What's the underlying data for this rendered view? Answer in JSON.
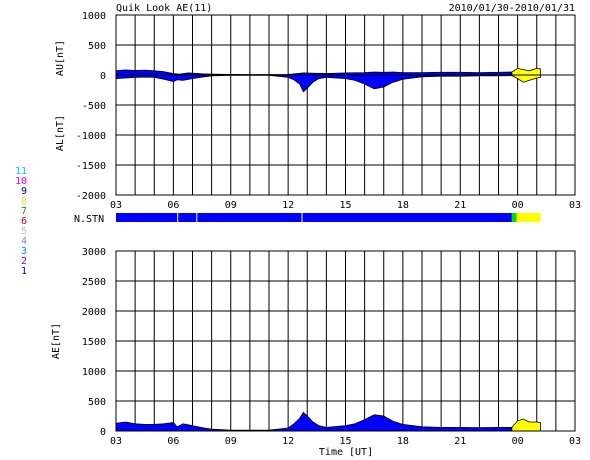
{
  "header": {
    "title": "Quik Look AE(11)",
    "date_range": "2010/01/30-2010/01/31"
  },
  "colors": {
    "frame": "#000000",
    "grid": "#000000",
    "main_fill": "#0000ff",
    "recent_fill": "#ffff00",
    "station_blue": "#0000ff",
    "station_green": "#00dd00",
    "station_yellow": "#ffff00"
  },
  "station_strip": {
    "label": "N.STN",
    "segments": [
      {
        "from": 3.0,
        "to": 23.7,
        "stations": 1,
        "color": "#0000ff"
      },
      {
        "from": 23.7,
        "to": 23.95,
        "stations": 7,
        "color": "#00dd00"
      },
      {
        "from": 23.95,
        "to": 25.2,
        "stations": 8,
        "color": "#ffff00"
      }
    ],
    "gaps_hours": [
      6.2,
      7.2,
      12.7
    ]
  },
  "station_legend": [
    {
      "label": "11",
      "color": "#00c8e8"
    },
    {
      "label": "10",
      "color": "#e000e0"
    },
    {
      "label": "9",
      "color": "#0000b0"
    },
    {
      "label": "8",
      "color": "#e0e040"
    },
    {
      "label": "7",
      "color": "#00b000"
    },
    {
      "label": "6",
      "color": "#e00000"
    },
    {
      "label": "5",
      "color": "#c0c0c0"
    },
    {
      "label": "4",
      "color": "#909090"
    },
    {
      "label": "3",
      "color": "#00a0a0"
    },
    {
      "label": "2",
      "color": "#a000a0"
    },
    {
      "label": "1",
      "color": "#0000c0"
    }
  ],
  "chart_data": [
    {
      "type": "area",
      "ylabel_top": "AU[nT]",
      "ylabel_bottom": "AL[nT]",
      "ylim": [
        -2000,
        1000
      ],
      "yticks": [
        "1000",
        "500",
        "0",
        "-500",
        "-1000",
        "-1500",
        "-2000"
      ],
      "ytick_values": [
        1000,
        500,
        0,
        -500,
        -1000,
        -1500,
        -2000
      ],
      "xlim": [
        3,
        27
      ],
      "xticks": [
        "03",
        "06",
        "09",
        "12",
        "15",
        "18",
        "21",
        "00",
        "03"
      ],
      "xtick_values": [
        3,
        6,
        9,
        12,
        15,
        18,
        21,
        24,
        27
      ],
      "grid": true,
      "series": [
        {
          "name": "AU",
          "x": [
            3.0,
            3.5,
            4.0,
            4.5,
            5.0,
            5.5,
            6.0,
            6.3,
            6.8,
            7.5,
            8.0,
            9.0,
            10.0,
            11.0,
            12.0,
            12.5,
            12.8,
            13.2,
            14.0,
            15.0,
            16.0,
            16.5,
            17.0,
            17.5,
            18.0,
            19.0,
            20.0,
            21.0,
            22.0,
            23.0,
            23.7,
            24.0,
            24.3,
            24.6,
            25.0,
            25.2
          ],
          "values": [
            70,
            85,
            75,
            80,
            70,
            55,
            25,
            15,
            35,
            20,
            15,
            10,
            8,
            8,
            10,
            25,
            35,
            30,
            25,
            35,
            40,
            50,
            45,
            50,
            40,
            40,
            45,
            45,
            40,
            45,
            50,
            110,
            90,
            70,
            110,
            100
          ]
        },
        {
          "name": "AL",
          "x": [
            3.0,
            3.5,
            4.0,
            4.5,
            5.0,
            5.5,
            6.0,
            6.2,
            6.5,
            7.0,
            7.5,
            8.0,
            9.0,
            10.0,
            11.0,
            12.0,
            12.3,
            12.6,
            12.8,
            13.0,
            13.3,
            13.6,
            14.0,
            15.0,
            15.5,
            16.0,
            16.5,
            17.0,
            17.5,
            18.0,
            19.0,
            20.0,
            21.0,
            22.0,
            23.0,
            23.7,
            24.0,
            24.3,
            24.6,
            25.0,
            25.2
          ],
          "values": [
            -60,
            -50,
            -40,
            -35,
            -40,
            -70,
            -110,
            -80,
            -90,
            -60,
            -35,
            -15,
            -5,
            -5,
            -5,
            -40,
            -80,
            -150,
            -280,
            -220,
            -120,
            -60,
            -40,
            -60,
            -90,
            -150,
            -230,
            -200,
            -120,
            -70,
            -30,
            -20,
            -20,
            -15,
            -15,
            -10,
            -60,
            -120,
            -90,
            -50,
            -40
          ]
        }
      ]
    },
    {
      "type": "area",
      "ylabel": "AE[nT]",
      "xlabel": "Time [UT]",
      "ylim": [
        0,
        3000
      ],
      "yticks": [
        "3000",
        "2500",
        "2000",
        "1500",
        "1000",
        "500",
        "0"
      ],
      "ytick_values": [
        3000,
        2500,
        2000,
        1500,
        1000,
        500,
        0
      ],
      "xlim": [
        3,
        27
      ],
      "xticks": [
        "03",
        "06",
        "09",
        "12",
        "15",
        "18",
        "21",
        "00",
        "03"
      ],
      "xtick_values": [
        3,
        6,
        9,
        12,
        15,
        18,
        21,
        24,
        27
      ],
      "grid": true,
      "series": [
        {
          "name": "AE",
          "x": [
            3.0,
            3.5,
            4.0,
            4.5,
            5.0,
            5.5,
            6.0,
            6.2,
            6.5,
            7.0,
            7.5,
            8.0,
            9.0,
            10.0,
            11.0,
            12.0,
            12.3,
            12.6,
            12.8,
            13.0,
            13.3,
            13.6,
            14.0,
            15.0,
            15.5,
            16.0,
            16.5,
            17.0,
            17.5,
            18.0,
            19.0,
            20.0,
            21.0,
            22.0,
            23.0,
            23.7,
            24.0,
            24.3,
            24.6,
            25.0,
            25.2
          ],
          "values": [
            130,
            150,
            120,
            110,
            110,
            120,
            140,
            70,
            120,
            90,
            55,
            30,
            15,
            15,
            15,
            50,
            120,
            210,
            310,
            250,
            150,
            90,
            60,
            90,
            120,
            190,
            270,
            250,
            160,
            110,
            70,
            60,
            60,
            55,
            60,
            60,
            170,
            200,
            150,
            150,
            140
          ]
        }
      ]
    }
  ]
}
